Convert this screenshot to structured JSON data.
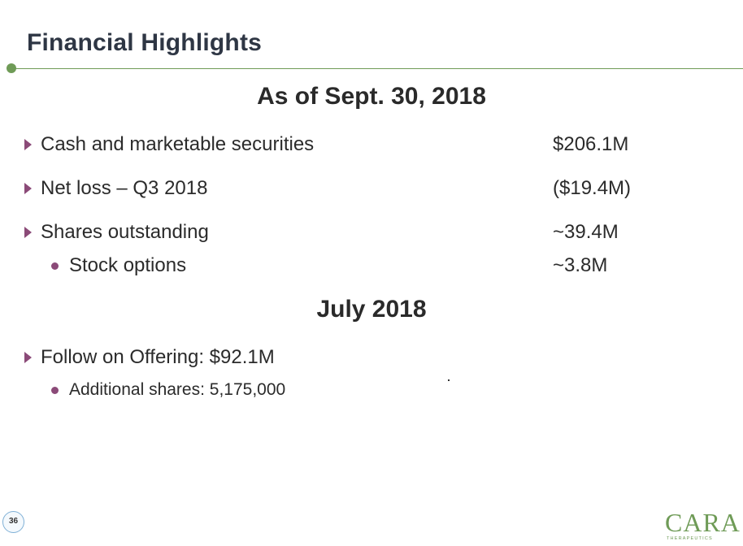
{
  "slide": {
    "title": "Financial Highlights",
    "page_number": "36"
  },
  "section1": {
    "heading": "As of Sept. 30, 2018",
    "items": [
      {
        "label": "Cash and marketable securities",
        "value": "$206.1M"
      },
      {
        "label": "Net loss – Q3 2018",
        "value": "($19.4M)"
      },
      {
        "label": "Shares outstanding",
        "value": "~39.4M"
      }
    ],
    "subitems": [
      {
        "label": "Stock options",
        "value": "~3.8M"
      }
    ]
  },
  "section2": {
    "heading": "July 2018",
    "items": [
      {
        "label": "Follow on Offering: $92.1M"
      }
    ],
    "subitems": [
      {
        "label": "Additional shares: 5,175,000"
      }
    ]
  },
  "logo": {
    "text": "CARA",
    "subtext": "THERAPEUTICS"
  },
  "colors": {
    "title": "#2e3644",
    "rule": "#6f9b57",
    "bullet": "#8b4a78",
    "logo": "#6f9b57"
  },
  "icons": {
    "level1_bullet": "triangle-right-icon",
    "level2_bullet": "dot-icon"
  }
}
